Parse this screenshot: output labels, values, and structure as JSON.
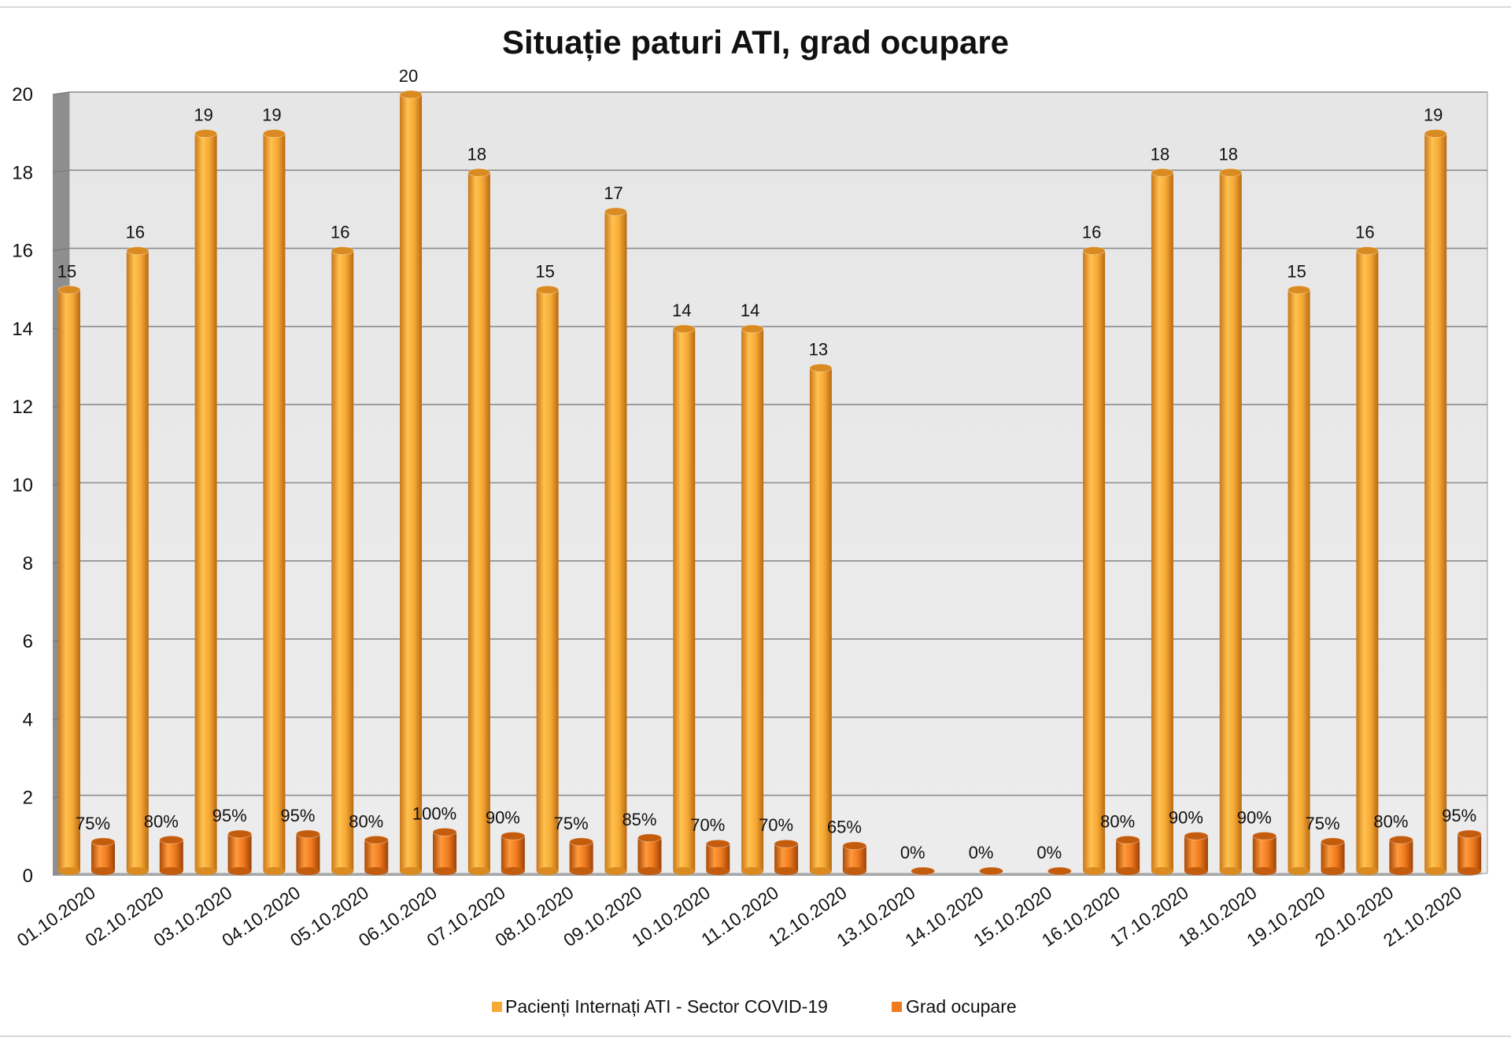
{
  "chart_data": {
    "type": "bar",
    "title": "Situație paturi ATI, grad ocupare",
    "xlabel": "",
    "ylabel": "",
    "ylim": [
      0,
      20
    ],
    "y_ticks": [
      0,
      2,
      4,
      6,
      8,
      10,
      12,
      14,
      16,
      18,
      20
    ],
    "grid": true,
    "legend_position": "bottom",
    "categories": [
      "01.10.2020",
      "02.10.2020",
      "03.10.2020",
      "04.10.2020",
      "05.10.2020",
      "06.10.2020",
      "07.10.2020",
      "08.10.2020",
      "09.10.2020",
      "10.10.2020",
      "11.10.2020",
      "12.10.2020",
      "13.10.2020",
      "14.10.2020",
      "15.10.2020",
      "16.10.2020",
      "17.10.2020",
      "18.10.2020",
      "19.10.2020",
      "20.10.2020",
      "21.10.2020"
    ],
    "series": [
      {
        "name": "Pacienți Internați ATI - Sector COVID-19",
        "color": "#F7A935",
        "values": [
          15,
          16,
          19,
          19,
          16,
          20,
          18,
          15,
          17,
          14,
          14,
          13,
          null,
          null,
          null,
          16,
          18,
          18,
          15,
          16,
          19
        ],
        "labels": [
          "15",
          "16",
          "19",
          "19",
          "16",
          "20",
          "18",
          "15",
          "17",
          "14",
          "14",
          "13",
          "",
          "",
          "",
          "16",
          "18",
          "18",
          "15",
          "16",
          "19"
        ]
      },
      {
        "name": "Grad ocupare",
        "color": "#F07A1E",
        "values": [
          0.75,
          0.8,
          0.95,
          0.95,
          0.8,
          1.0,
          0.9,
          0.75,
          0.85,
          0.7,
          0.7,
          0.65,
          0,
          0,
          0,
          0.8,
          0.9,
          0.9,
          0.75,
          0.8,
          0.95
        ],
        "labels": [
          "75%",
          "80%",
          "95%",
          "95%",
          "80%",
          "100%",
          "90%",
          "75%",
          "85%",
          "70%",
          "70%",
          "65%",
          "0%",
          "0%",
          "0%",
          "80%",
          "90%",
          "90%",
          "75%",
          "80%",
          "95%"
        ]
      }
    ]
  }
}
